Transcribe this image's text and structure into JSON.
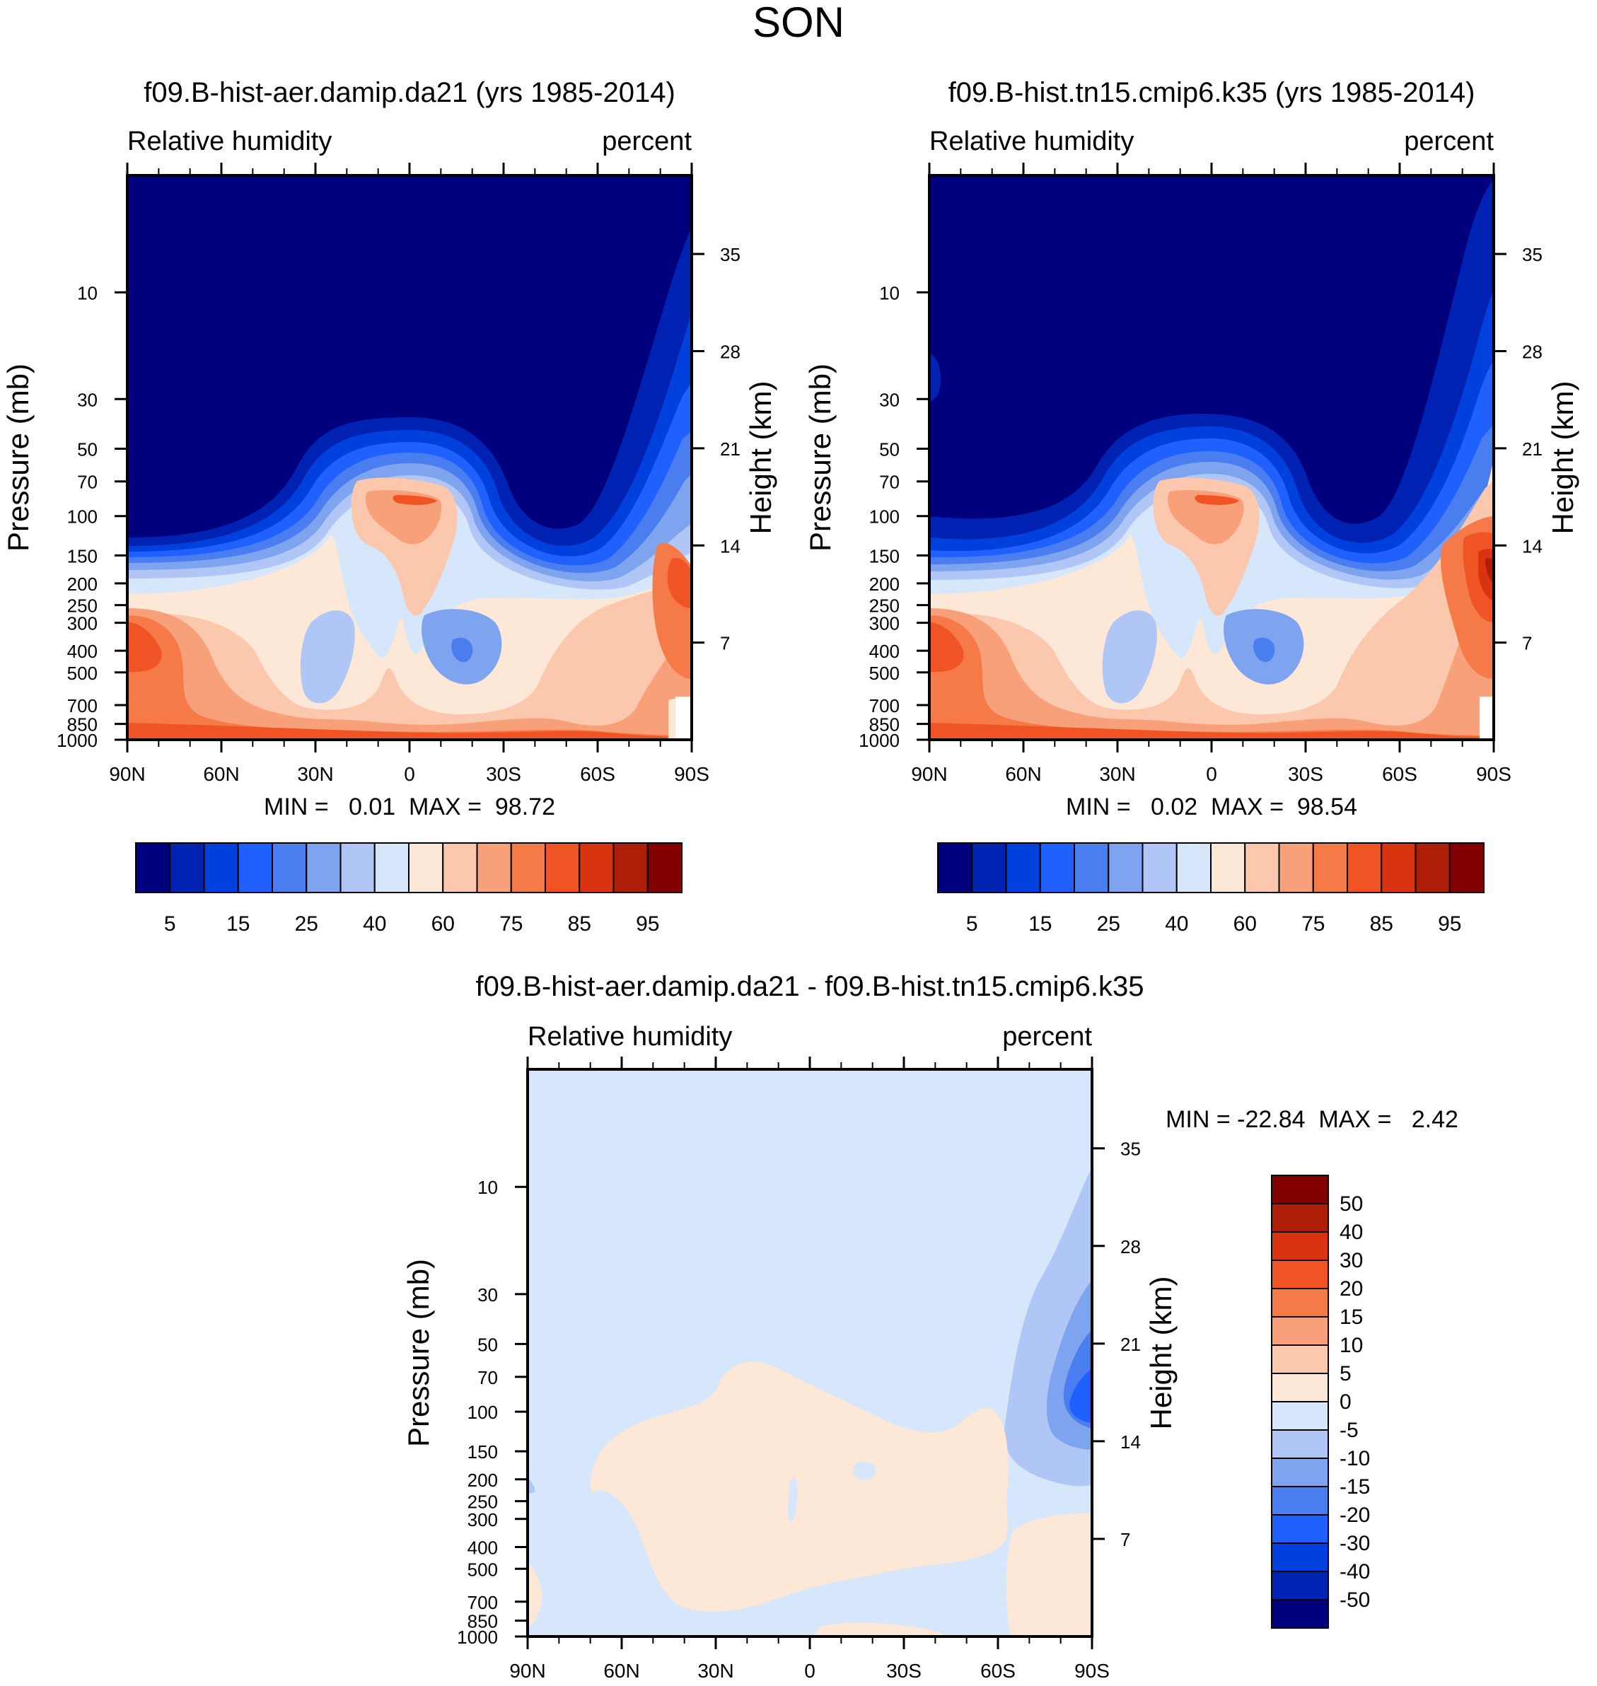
{
  "figure": {
    "title": "SON"
  },
  "panels": [
    {
      "title": "f09.B-hist-aer.damip.da21 (yrs 1985-2014)",
      "variable": "Relative humidity",
      "units": "percent",
      "minmax": "MIN =   0.01  MAX =  98.72"
    },
    {
      "title": "f09.B-hist.tn15.cmip6.k35 (yrs 1985-2014)",
      "variable": "Relative humidity",
      "units": "percent",
      "minmax": "MIN =   0.02  MAX =  98.54"
    },
    {
      "title": "f09.B-hist-aer.damip.da21 - f09.B-hist.tn15.cmip6.k35",
      "variable": "Relative humidity",
      "units": "percent",
      "minmax": "MIN = -22.84  MAX =   2.42"
    }
  ],
  "chart_data": [
    {
      "type": "contour",
      "title": "f09.B-hist-aer.damip.da21 (yrs 1985-2014)",
      "xlabel": "",
      "ylabel": "Pressure (mb)",
      "y2label": "Height (km)",
      "x_ticks": [
        "90N",
        "60N",
        "30N",
        "0",
        "30S",
        "60S",
        "90S"
      ],
      "y_ticks": [
        10,
        30,
        50,
        70,
        100,
        150,
        200,
        250,
        300,
        400,
        500,
        700,
        850,
        1000
      ],
      "y2_ticks": [
        35,
        28,
        21,
        14,
        7
      ],
      "ylim": [
        3,
        1000
      ],
      "min": 0.01,
      "max": 98.72,
      "field": [
        {
          "level": 17,
          "points": [
            [
              -90,
              1000
            ],
            [
              -90,
              300
            ],
            [
              -75,
              330
            ],
            [
              -62,
              500
            ],
            [
              -48,
              650
            ],
            [
              -30,
              780
            ],
            [
              -10,
              800
            ],
            [
              10,
              820
            ],
            [
              35,
              840
            ],
            [
              60,
              860
            ],
            [
              78,
              870
            ],
            [
              90,
              900
            ],
            [
              90,
              1000
            ]
          ]
        },
        {
          "level": 16,
          "points": [
            [
              -90,
              1000
            ],
            [
              -90,
              400
            ],
            [
              -78,
              420
            ],
            [
              -68,
              560
            ],
            [
              -55,
              700
            ],
            [
              -40,
              820
            ],
            [
              -20,
              900
            ],
            [
              0,
              920
            ],
            [
              25,
              940
            ],
            [
              50,
              930
            ],
            [
              70,
              940
            ],
            [
              85,
              950
            ],
            [
              90,
              980
            ],
            [
              90,
              1000
            ]
          ]
        }
      ]
    },
    {
      "type": "contour",
      "title": "f09.B-hist.tn15.cmip6.k35 (yrs 1985-2014)",
      "xlabel": "",
      "ylabel": "Pressure (mb)",
      "y2label": "Height (km)",
      "x_ticks": [
        "90N",
        "60N",
        "30N",
        "0",
        "30S",
        "60S",
        "90S"
      ],
      "y_ticks": [
        10,
        30,
        50,
        70,
        100,
        150,
        200,
        250,
        300,
        400,
        500,
        700,
        850,
        1000
      ],
      "y2_ticks": [
        35,
        28,
        21,
        14,
        7
      ],
      "ylim": [
        3,
        1000
      ],
      "min": 0.02,
      "max": 98.54
    },
    {
      "type": "contour",
      "title": "f09.B-hist-aer.damip.da21 - f09.B-hist.tn15.cmip6.k35",
      "xlabel": "",
      "ylabel": "Pressure (mb)",
      "y2label": "Height (km)",
      "x_ticks": [
        "90N",
        "60N",
        "30N",
        "0",
        "30S",
        "60S",
        "90S"
      ],
      "y_ticks": [
        10,
        30,
        50,
        70,
        100,
        150,
        200,
        250,
        300,
        400,
        500,
        700,
        850,
        1000
      ],
      "y2_ticks": [
        35,
        28,
        21,
        14,
        7
      ],
      "ylim": [
        3,
        1000
      ],
      "min": -22.84,
      "max": 2.42
    }
  ],
  "colorbars": {
    "abs": {
      "colors": [
        "#00007f",
        "#0022b2",
        "#0040dd",
        "#2060ff",
        "#4a7ef0",
        "#7ea3ef",
        "#b0c6f6",
        "#d6e7fb",
        "#fde7d6",
        "#fbc7ad",
        "#f8a07a",
        "#f57a48",
        "#f05425",
        "#d93310",
        "#b01d08",
        "#820000"
      ],
      "labels": [
        "5",
        "15",
        "25",
        "40",
        "60",
        "75",
        "85",
        "95"
      ]
    },
    "diff": {
      "colors": [
        "#820000",
        "#b01d08",
        "#d93310",
        "#f05425",
        "#f57a48",
        "#f8a07a",
        "#fbc7ad",
        "#fde7d6",
        "#d6e7fb",
        "#b0c6f6",
        "#7ea3ef",
        "#4a7ef0",
        "#2060ff",
        "#0040dd",
        "#0022b2",
        "#00007f"
      ],
      "labels": [
        "50",
        "40",
        "30",
        "20",
        "15",
        "10",
        "5",
        "0",
        "-5",
        "-10",
        "-15",
        "-20",
        "-30",
        "-40",
        "-50"
      ]
    }
  }
}
